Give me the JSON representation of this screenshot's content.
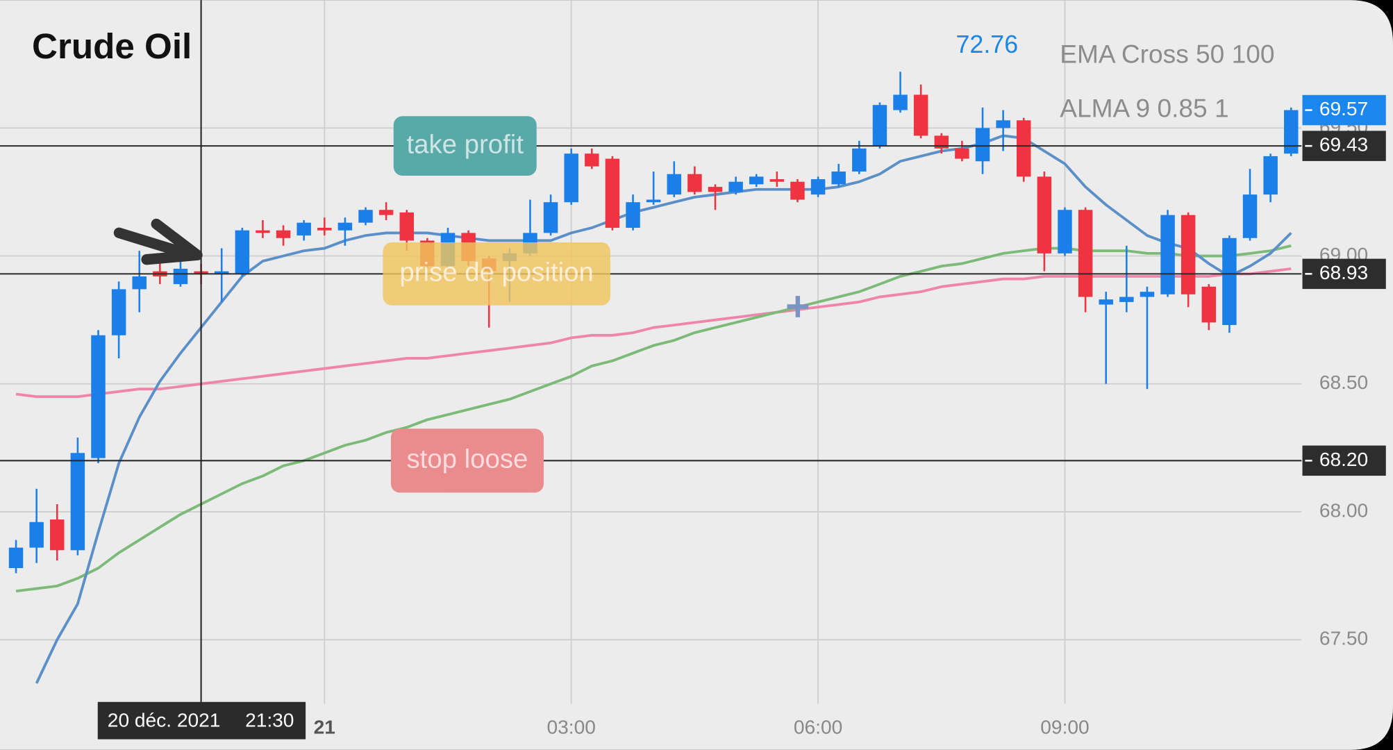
{
  "chart_data": {
    "type": "candlestick",
    "title": "Crude Oil",
    "header_price": 72.76,
    "categories": [
      null,
      null,
      null,
      null,
      null,
      null,
      null,
      null,
      null,
      null,
      null,
      null,
      null,
      null,
      null,
      "21",
      null,
      null,
      null,
      null,
      null,
      null,
      null,
      null,
      null,
      null,
      null,
      "03:00",
      null,
      null,
      null,
      null,
      null,
      null,
      null,
      null,
      null,
      null,
      null,
      "06:00",
      null,
      null,
      null,
      null,
      null,
      null,
      null,
      null,
      null,
      null,
      null,
      "09:00",
      null,
      null,
      null,
      null,
      null,
      null,
      null,
      null,
      null,
      null,
      null
    ],
    "open": [
      67.78,
      67.86,
      67.97,
      67.85,
      68.21,
      68.69,
      68.87,
      68.94,
      68.89,
      68.94,
      68.93,
      68.93,
      69.1,
      69.1,
      69.08,
      69.11,
      69.1,
      69.13,
      69.18,
      69.17,
      69.06,
      68.96,
      69.09,
      68.99,
      68.98,
      69.01,
      69.09,
      69.21,
      69.4,
      69.38,
      69.11,
      69.21,
      69.24,
      69.32,
      69.27,
      69.25,
      69.28,
      69.3,
      69.29,
      69.24,
      69.28,
      69.33,
      69.43,
      69.57,
      69.63,
      69.47,
      69.42,
      69.37,
      69.5,
      69.53,
      69.31,
      69.01,
      69.18,
      68.81,
      68.82,
      68.84,
      68.85,
      69.16,
      68.88,
      68.73,
      69.07,
      69.24,
      69.4
    ],
    "high": [
      67.89,
      68.09,
      68.03,
      68.29,
      68.71,
      68.9,
      69.02,
      68.98,
      69.03,
      68.97,
      69.03,
      69.11,
      69.14,
      69.12,
      69.14,
      69.15,
      69.15,
      69.19,
      69.21,
      69.18,
      69.07,
      69.11,
      69.1,
      69.0,
      69.03,
      69.22,
      69.24,
      69.42,
      69.42,
      69.39,
      69.24,
      69.33,
      69.37,
      69.35,
      69.28,
      69.31,
      69.32,
      69.33,
      69.3,
      69.31,
      69.36,
      69.45,
      69.6,
      69.72,
      69.67,
      69.48,
      69.45,
      69.58,
      69.57,
      69.54,
      69.33,
      69.19,
      69.19,
      68.86,
      69.04,
      68.88,
      69.18,
      69.17,
      68.89,
      69.08,
      69.34,
      69.4,
      69.58
    ],
    "low": [
      67.76,
      67.8,
      67.81,
      67.83,
      68.19,
      68.6,
      68.78,
      68.89,
      68.88,
      68.89,
      68.82,
      68.92,
      69.07,
      69.04,
      69.06,
      69.08,
      69.04,
      69.12,
      69.14,
      69.02,
      68.95,
      68.95,
      68.96,
      68.72,
      68.82,
      69.0,
      69.08,
      69.2,
      69.34,
      69.1,
      69.1,
      69.2,
      69.23,
      69.24,
      69.18,
      69.24,
      69.27,
      69.27,
      69.21,
      69.23,
      69.27,
      69.32,
      69.42,
      69.56,
      69.46,
      69.4,
      69.37,
      69.32,
      69.41,
      69.29,
      68.94,
      69.0,
      68.78,
      68.5,
      68.78,
      68.48,
      68.84,
      68.8,
      68.71,
      68.7,
      69.06,
      69.21,
      69.39
    ],
    "close": [
      67.86,
      67.96,
      67.85,
      68.23,
      68.69,
      68.87,
      68.92,
      68.92,
      68.95,
      68.93,
      68.94,
      69.1,
      69.09,
      69.07,
      69.13,
      69.1,
      69.13,
      69.18,
      69.16,
      69.06,
      68.96,
      69.09,
      68.98,
      68.94,
      69.01,
      69.09,
      69.21,
      69.4,
      69.35,
      69.11,
      69.21,
      69.22,
      69.32,
      69.25,
      69.25,
      69.29,
      69.31,
      69.29,
      69.22,
      69.3,
      69.33,
      69.42,
      69.59,
      69.63,
      69.47,
      69.42,
      69.38,
      69.5,
      69.53,
      69.31,
      69.01,
      69.18,
      68.84,
      68.83,
      68.84,
      68.86,
      69.16,
      68.85,
      68.74,
      69.07,
      69.24,
      69.39,
      69.57
    ],
    "up_color": "#1a7fe8",
    "down_color": "#ef3340",
    "indicators": [
      {
        "name": "EMA Cross 50 100",
        "lines": [
          {
            "color": "#ef86a9",
            "values": [
              68.46,
              68.45,
              68.45,
              68.45,
              68.46,
              68.47,
              68.48,
              68.48,
              68.49,
              68.5,
              68.51,
              68.52,
              68.53,
              68.54,
              68.55,
              68.56,
              68.57,
              68.58,
              68.59,
              68.6,
              68.6,
              68.61,
              68.62,
              68.63,
              68.64,
              68.65,
              68.66,
              68.68,
              68.69,
              68.69,
              68.7,
              68.72,
              68.73,
              68.74,
              68.75,
              68.76,
              68.77,
              68.78,
              68.79,
              68.8,
              68.81,
              68.82,
              68.84,
              68.85,
              68.86,
              68.88,
              68.89,
              68.9,
              68.91,
              68.91,
              68.92,
              68.92,
              68.92,
              68.92,
              68.92,
              68.92,
              68.92,
              68.92,
              68.92,
              68.93,
              68.93,
              68.94,
              68.95
            ]
          },
          {
            "color": "#7cba78",
            "values": [
              67.69,
              67.7,
              67.71,
              67.74,
              67.78,
              67.84,
              67.89,
              67.94,
              67.99,
              68.03,
              68.07,
              68.11,
              68.14,
              68.18,
              68.2,
              68.23,
              68.26,
              68.28,
              68.31,
              68.33,
              68.36,
              68.38,
              68.4,
              68.42,
              68.44,
              68.47,
              68.5,
              68.53,
              68.57,
              68.59,
              68.62,
              68.65,
              68.67,
              68.7,
              68.72,
              68.74,
              68.76,
              68.78,
              68.8,
              68.82,
              68.84,
              68.86,
              68.89,
              68.92,
              68.94,
              68.96,
              68.97,
              68.99,
              69.01,
              69.02,
              69.03,
              69.03,
              69.02,
              69.02,
              69.02,
              69.01,
              69.01,
              69.0,
              69.0,
              69.0,
              69.01,
              69.02,
              69.04
            ]
          }
        ]
      },
      {
        "name": "ALMA 9 0.85 1",
        "lines": [
          {
            "color": "#5b8fc7",
            "values": [
              null,
              67.33,
              67.5,
              67.64,
              67.92,
              68.19,
              68.37,
              68.51,
              68.62,
              68.72,
              68.82,
              68.92,
              68.98,
              69.0,
              69.02,
              69.03,
              69.06,
              69.08,
              69.09,
              69.09,
              69.09,
              69.08,
              69.07,
              69.06,
              69.06,
              69.06,
              69.06,
              69.09,
              69.11,
              69.14,
              69.17,
              69.19,
              69.21,
              69.23,
              69.24,
              69.25,
              69.26,
              69.26,
              69.26,
              69.26,
              69.27,
              69.29,
              69.32,
              69.37,
              69.39,
              69.41,
              69.42,
              69.44,
              69.47,
              69.46,
              69.41,
              69.36,
              69.27,
              69.2,
              69.14,
              69.08,
              69.05,
              69.03,
              68.97,
              68.92,
              68.96,
              69.01,
              69.09
            ]
          }
        ]
      }
    ],
    "ylim": [
      67.25,
      70.0
    ],
    "yticks": [
      {
        "value": 67.5,
        "label": "67.50"
      },
      {
        "value": 68,
        "label": "68.00"
      },
      {
        "value": 68.5,
        "label": "68.50"
      },
      {
        "value": 69,
        "label": "69.00"
      },
      {
        "value": 69.5,
        "label": "69.50"
      }
    ],
    "grid": true,
    "price_lines": [
      {
        "value": 69.43,
        "annotation": "take profit",
        "annotation_color": "#5aa9a9"
      },
      {
        "value": 68.93,
        "annotation": "prise de position",
        "annotation_color": "#f2c45e"
      },
      {
        "value": 68.2,
        "label": "68.20",
        "annotation": "stop loose",
        "annotation_color": "#ea8b8e"
      }
    ],
    "current_price": {
      "value": 69.57,
      "color": "#1a86ee"
    },
    "crosshair": {
      "index": 9,
      "date": "20 déc. 2021",
      "time": "21:30"
    }
  }
}
